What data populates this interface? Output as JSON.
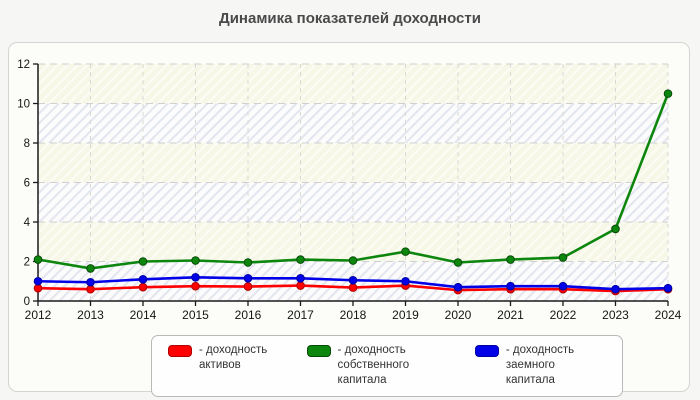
{
  "title": "Динамика показателей доходности",
  "chart_data": {
    "type": "line",
    "title": "Динамика показателей доходности",
    "xlabel": "",
    "ylabel": "",
    "categories": [
      "2012",
      "2013",
      "2014",
      "2015",
      "2016",
      "2017",
      "2018",
      "2019",
      "2020",
      "2021",
      "2022",
      "2023",
      "2024"
    ],
    "series": [
      {
        "name": "доходность активов",
        "color": "#ff0000",
        "border": "#b00000",
        "values": [
          0.65,
          0.6,
          0.7,
          0.75,
          0.73,
          0.78,
          0.68,
          0.78,
          0.55,
          0.6,
          0.6,
          0.5,
          0.6
        ]
      },
      {
        "name": "доходность собственного капитала",
        "color": "#0d860d",
        "border": "#064906",
        "values": [
          2.1,
          1.65,
          2.0,
          2.05,
          1.95,
          2.1,
          2.05,
          2.5,
          1.95,
          2.1,
          2.2,
          3.65,
          10.5
        ]
      },
      {
        "name": "доходность заемного капитала",
        "color": "#0202e8",
        "border": "#0000a0",
        "values": [
          1.0,
          0.95,
          1.1,
          1.2,
          1.15,
          1.15,
          1.05,
          1.0,
          0.7,
          0.75,
          0.75,
          0.6,
          0.65
        ]
      }
    ],
    "ylim": [
      0,
      12
    ],
    "yticks": [
      0,
      2,
      4,
      6,
      8,
      10,
      12
    ],
    "ytick_step": 2,
    "grid": true,
    "legend_position": "bottom"
  },
  "legend": {
    "items": [
      {
        "label": "- доходность активов"
      },
      {
        "label": "- доходность собственного капитала"
      },
      {
        "label": "- доходность заемного капитала"
      }
    ]
  }
}
